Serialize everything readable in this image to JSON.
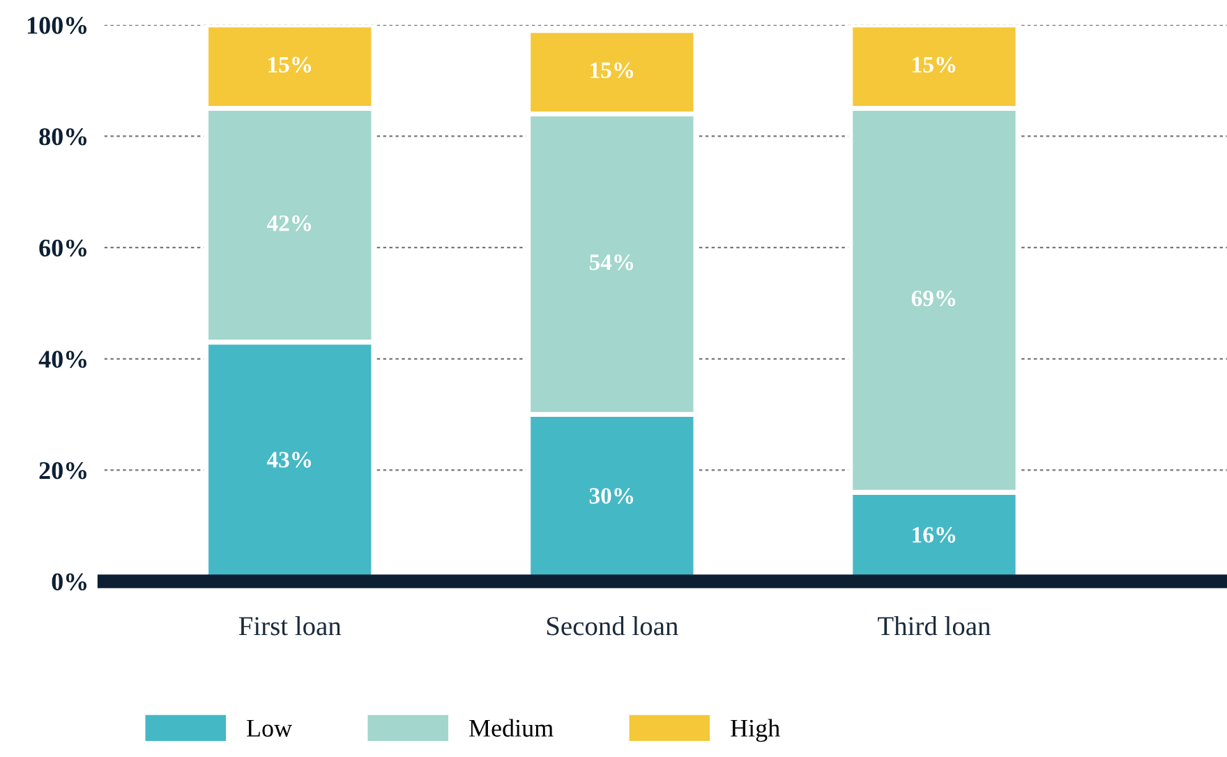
{
  "chart_data": {
    "type": "bar",
    "stacked": true,
    "categories": [
      "First loan",
      "Second loan",
      "Third loan"
    ],
    "series": [
      {
        "name": "Low",
        "color": "#45b8c5",
        "values": [
          43,
          30,
          16
        ],
        "value_labels": [
          "43%",
          "30%",
          "16%"
        ]
      },
      {
        "name": "Medium",
        "color": "#a3d6cc",
        "values": [
          42,
          54,
          69
        ],
        "value_labels": [
          "42%",
          "54%",
          "69%"
        ]
      },
      {
        "name": "High",
        "color": "#f5c83a",
        "values": [
          15,
          15,
          15
        ],
        "value_labels": [
          "15%",
          "15%",
          "15%"
        ]
      }
    ],
    "ylim": [
      0,
      100
    ],
    "yticks": [
      {
        "value": 0,
        "label": "0%"
      },
      {
        "value": 20,
        "label": "20%"
      },
      {
        "value": 40,
        "label": "40%"
      },
      {
        "value": 60,
        "label": "60%"
      },
      {
        "value": 80,
        "label": "80%"
      },
      {
        "value": 100,
        "label": "100%"
      }
    ],
    "grid": "y",
    "legend": "bottom left"
  }
}
